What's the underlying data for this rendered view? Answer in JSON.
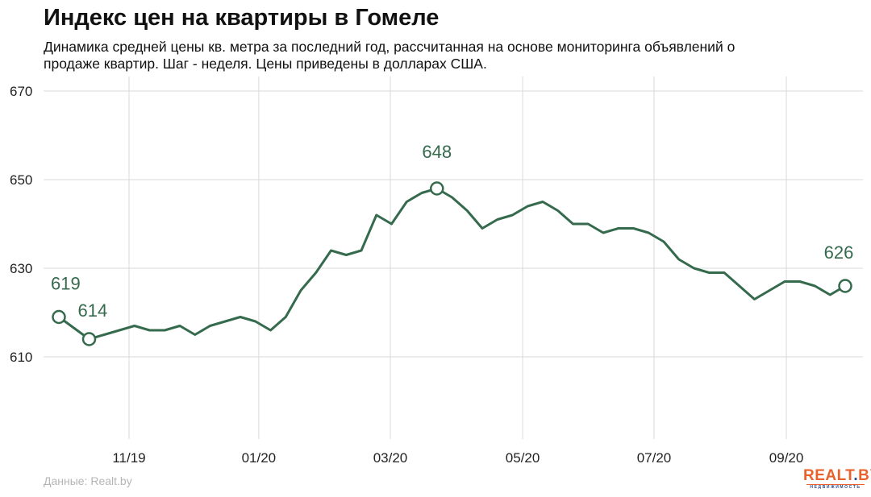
{
  "title": "Индекс цен на квартиры в Гомеле",
  "subtitle": "Динамика средней цены кв. метра за последний год, рассчитанная на основе мониторинга объявлений о продаже квартир. Шаг - неделя. Цены приведены в долларах США.",
  "source": "Данные: Realt.by",
  "logo": {
    "main": "REALT.BY",
    "sub": "НЕДВИЖИМОСТЬ"
  },
  "colors": {
    "line": "#356a4d",
    "grid": "#d9d9d9"
  },
  "chart_data": {
    "type": "line",
    "title": "Индекс цен на квартиры в Гомеле",
    "xlabel": "",
    "ylabel": "",
    "ylim": [
      590,
      670
    ],
    "yticks": [
      610,
      630,
      650,
      670
    ],
    "xticks": [
      {
        "label": "11/19",
        "x": 4.64
      },
      {
        "label": "01/20",
        "x": 13.22
      },
      {
        "label": "03/20",
        "x": 21.92
      },
      {
        "label": "05/20",
        "x": 30.67
      },
      {
        "label": "07/20",
        "x": 39.36
      },
      {
        "label": "09/20",
        "x": 48.11
      }
    ],
    "grid": true,
    "values": [
      619,
      616.5,
      614,
      615,
      616,
      617,
      616,
      616,
      617,
      615,
      617,
      618,
      619,
      618,
      616,
      619,
      625,
      629,
      634,
      633,
      634,
      642,
      640,
      645,
      647,
      648,
      646,
      643,
      639,
      641,
      642,
      644,
      645,
      643,
      640,
      640,
      638,
      639,
      639,
      638,
      636,
      632,
      630,
      629,
      629,
      626,
      623,
      625,
      627,
      627,
      626,
      624,
      626
    ],
    "annotations": [
      {
        "index": 0,
        "label": "619"
      },
      {
        "index": 2,
        "label": "614"
      },
      {
        "index": 25,
        "label": "648"
      },
      {
        "index": 52,
        "label": "626"
      }
    ]
  }
}
